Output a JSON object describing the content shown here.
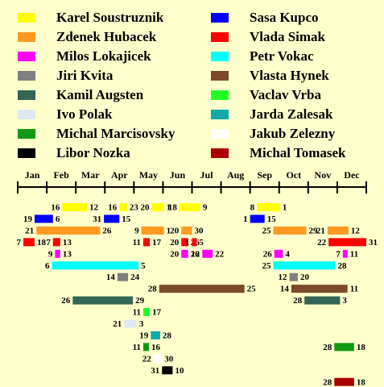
{
  "chart_data": {
    "type": "gantt",
    "categories": [
      "Jan",
      "Feb",
      "Mar",
      "Apr",
      "May",
      "Jun",
      "Jul",
      "Aug",
      "Sep",
      "Oct",
      "Nov",
      "Dec"
    ],
    "series": [
      {
        "name": "Karel Soustruznik",
        "color": "#ffff00",
        "segments": [
          {
            "start_month": "Feb",
            "start_day": 16,
            "end_month": "Mar",
            "end_day": 12
          },
          {
            "start_month": "Apr",
            "start_day": 16,
            "end_month": "Apr",
            "end_day": 23
          },
          {
            "start_month": "May",
            "start_day": 20,
            "end_month": "Jun",
            "end_day": 1
          },
          {
            "start_month": "Jun",
            "start_day": 18,
            "end_month": "Jul",
            "end_day": 9
          },
          {
            "start_month": "Sep",
            "start_day": 8,
            "end_month": "Oct",
            "end_day": 1
          }
        ]
      },
      {
        "name": "Sasa Kupco",
        "color": "#0000ff",
        "segments": [
          {
            "start_month": "Jan",
            "start_day": 19,
            "end_month": "Feb",
            "end_day": 6
          },
          {
            "start_month": "Mar",
            "start_day": 31,
            "end_month": "Apr",
            "end_day": 15
          },
          {
            "start_month": "Sep",
            "start_day": 1,
            "end_month": "Sep",
            "end_day": 15
          }
        ]
      },
      {
        "name": "Zdenek Hubacek",
        "color": "#ff9922",
        "segments": [
          {
            "start_month": "Jan",
            "start_day": 21,
            "end_month": "Mar",
            "end_day": 26
          },
          {
            "start_month": "May",
            "start_day": 9,
            "end_month": "Jun",
            "end_day": 1
          },
          {
            "start_month": "Jun",
            "start_day": 20,
            "end_month": "Jun",
            "end_day": 30
          },
          {
            "start_month": "Sep",
            "start_day": 25,
            "end_month": "Oct",
            "end_day": 29
          },
          {
            "start_month": "Nov",
            "start_day": 21,
            "end_month": "Dec",
            "end_day": 12
          }
        ]
      },
      {
        "name": "Vlada Simak",
        "color": "#ff0000",
        "segments": [
          {
            "start_month": "Jan",
            "start_day": 7,
            "end_month": "Jan",
            "end_day": 18
          },
          {
            "start_month": "Feb",
            "start_day": 7,
            "end_month": "Feb",
            "end_day": 13
          },
          {
            "start_month": "May",
            "start_day": 11,
            "end_month": "May",
            "end_day": 17
          },
          {
            "start_month": "Jun",
            "start_day": 20,
            "end_month": "Jun",
            "end_day": 26
          },
          {
            "start_month": "Jul",
            "start_day": 1,
            "end_month": "Jul",
            "end_day": 5
          },
          {
            "start_month": "Nov",
            "start_day": 22,
            "end_month": "Dec",
            "end_day": 31
          }
        ]
      },
      {
        "name": "Milos Lokajicek",
        "color": "#ff00ff",
        "segments": [
          {
            "start_month": "Feb",
            "start_day": 9,
            "end_month": "Feb",
            "end_day": 13
          },
          {
            "start_month": "Jun",
            "start_day": 20,
            "end_month": "Jun",
            "end_day": 26
          },
          {
            "start_month": "Jul",
            "start_day": 12,
            "end_month": "Jul",
            "end_day": 22
          },
          {
            "start_month": "Sep",
            "start_day": 26,
            "end_month": "Oct",
            "end_day": 4
          },
          {
            "start_month": "Dec",
            "start_day": 7,
            "end_month": "Dec",
            "end_day": 11
          }
        ]
      },
      {
        "name": "Petr Vokac",
        "color": "#00ffff",
        "segments": [
          {
            "start_month": "Feb",
            "start_day": 6,
            "end_month": "May",
            "end_day": 5
          },
          {
            "start_month": "Sep",
            "start_day": 25,
            "end_month": "Nov",
            "end_day": 28
          }
        ]
      },
      {
        "name": "Jiri Kvita",
        "color": "#808080",
        "segments": [
          {
            "start_month": "Apr",
            "start_day": 14,
            "end_month": "Apr",
            "end_day": 24
          },
          {
            "start_month": "Oct",
            "start_day": 12,
            "end_month": "Oct",
            "end_day": 20
          }
        ]
      },
      {
        "name": "Vlasta Hynek",
        "color": "#7b4a2a",
        "segments": [
          {
            "start_month": "May",
            "start_day": 28,
            "end_month": "Aug",
            "end_day": 25
          },
          {
            "start_month": "Oct",
            "start_day": 14,
            "end_month": "Dec",
            "end_day": 11
          }
        ]
      },
      {
        "name": "Kamil Augsten",
        "color": "#336655",
        "segments": [
          {
            "start_month": "Feb",
            "start_day": 26,
            "end_month": "Apr",
            "end_day": 29
          },
          {
            "start_month": "Oct",
            "start_day": 28,
            "end_month": "Dec",
            "end_day": 3
          }
        ]
      },
      {
        "name": "Vaclav Vrba",
        "color": "#22ff22",
        "segments": [
          {
            "start_month": "May",
            "start_day": 11,
            "end_month": "May",
            "end_day": 17
          }
        ]
      },
      {
        "name": "Ivo Polak",
        "color": "#dde8f0",
        "segments": [
          {
            "start_month": "Apr",
            "start_day": 21,
            "end_month": "May",
            "end_day": 3
          }
        ]
      },
      {
        "name": "Jarda Zalesak",
        "color": "#11aaaa",
        "segments": [
          {
            "start_month": "May",
            "start_day": 19,
            "end_month": "May",
            "end_day": 28
          }
        ]
      },
      {
        "name": "Michal Marcisovsky",
        "color": "#119911",
        "segments": [
          {
            "start_month": "May",
            "start_day": 11,
            "end_month": "May",
            "end_day": 16
          },
          {
            "start_month": "Nov",
            "start_day": 28,
            "end_month": "Dec",
            "end_day": 18
          }
        ]
      },
      {
        "name": "Jakub Zelezny",
        "color": "#ffffff",
        "segments": [
          {
            "start_month": "May",
            "start_day": 22,
            "end_month": "May",
            "end_day": 30
          }
        ]
      },
      {
        "name": "Libor Nozka",
        "color": "#000000",
        "segments": [
          {
            "start_month": "May",
            "start_day": 31,
            "end_month": "Jun",
            "end_day": 10
          }
        ]
      },
      {
        "name": "Michal Tomasek",
        "color": "#aa0000",
        "segments": [
          {
            "start_month": "Nov",
            "start_day": 28,
            "end_month": "Dec",
            "end_day": 18
          }
        ]
      }
    ]
  }
}
